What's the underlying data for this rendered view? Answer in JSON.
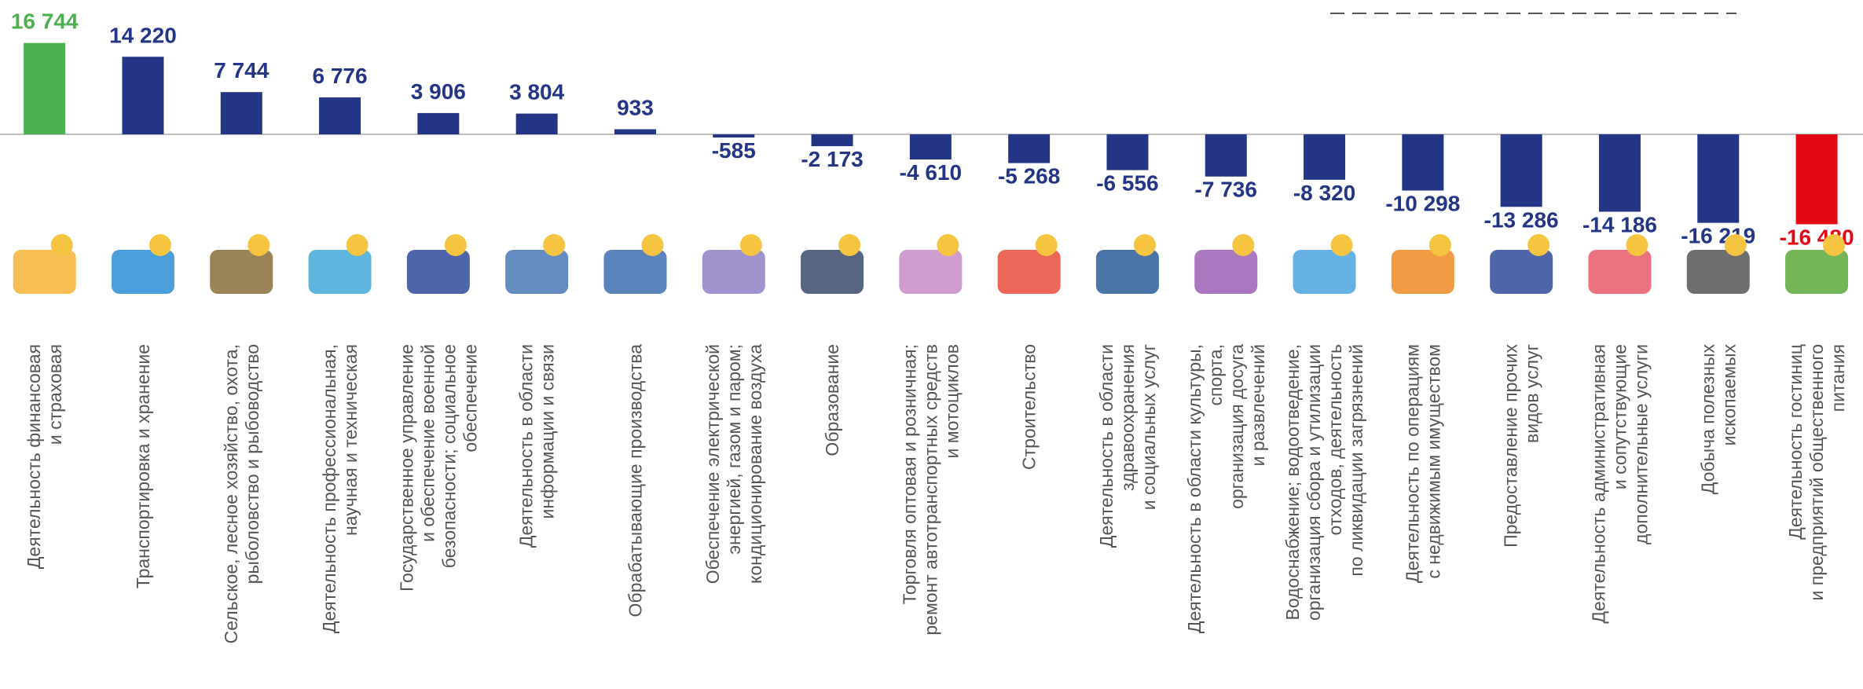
{
  "chart_data": {
    "type": "bar",
    "categories": [
      "Деятельность финансовая\nи страховая",
      "Транспортировка и хранение",
      "Сельское, лесное хозяйство, охота,\nрыболовство и рыбоводство",
      "Деятельность профессиональная,\nнаучная и техническая",
      "Государственное управление\nи обеспечение военной\nбезопасности; социальное\nобеспечение",
      "Деятельность в области\nинформации и связи",
      "Обрабатывающие производства",
      "Обеспечение электрической\nэнергией, газом и паром;\nкондиционирование воздуха",
      "Образование",
      "Торговля оптовая и розничная;\nремонт автотранспортных средств\nи мотоциклов",
      "Строительство",
      "Деятельность в области\nздравоохранения\nи социальных услуг",
      "Деятельность в области культуры,\nспорта,\nорганизация досуга\nи развлечений",
      "Водоснабжение; водоотведение,\nорганизация сбора и утилизации\nотходов, деятельность\nпо ликвидации загрязнений",
      "Деятельность по операциям\nс недвижимым имуществом",
      "Предоставление прочих\nвидов услуг",
      "Деятельность административная\nи сопутствующие\nдополнительные услуги",
      "Добыча полезных\nископаемых",
      "Деятельность гостиниц\nи предприятий общественного\nпитания"
    ],
    "values": [
      16744,
      14220,
      7744,
      6776,
      3906,
      3804,
      933,
      -585,
      -2173,
      -4610,
      -5268,
      -6556,
      -7736,
      -8320,
      -10298,
      -13286,
      -14186,
      -16219,
      -16480
    ],
    "value_labels": [
      "16 744",
      "14 220",
      "7 744",
      "6 776",
      "3 906",
      "3 804",
      "933",
      "-585",
      "-2 173",
      "-4 610",
      "-5 268",
      "-6 556",
      "-7 736",
      "-8 320",
      "-10 298",
      "-13 286",
      "-14 186",
      "-16 219",
      "-16 480"
    ],
    "colors": [
      "#4caf50",
      "#253585",
      "#253585",
      "#253585",
      "#253585",
      "#253585",
      "#253585",
      "#253585",
      "#253585",
      "#253585",
      "#253585",
      "#253585",
      "#253585",
      "#253585",
      "#253585",
      "#253585",
      "#253585",
      "#253585",
      "#e30613"
    ],
    "ylim": [
      -18000,
      18000
    ]
  }
}
